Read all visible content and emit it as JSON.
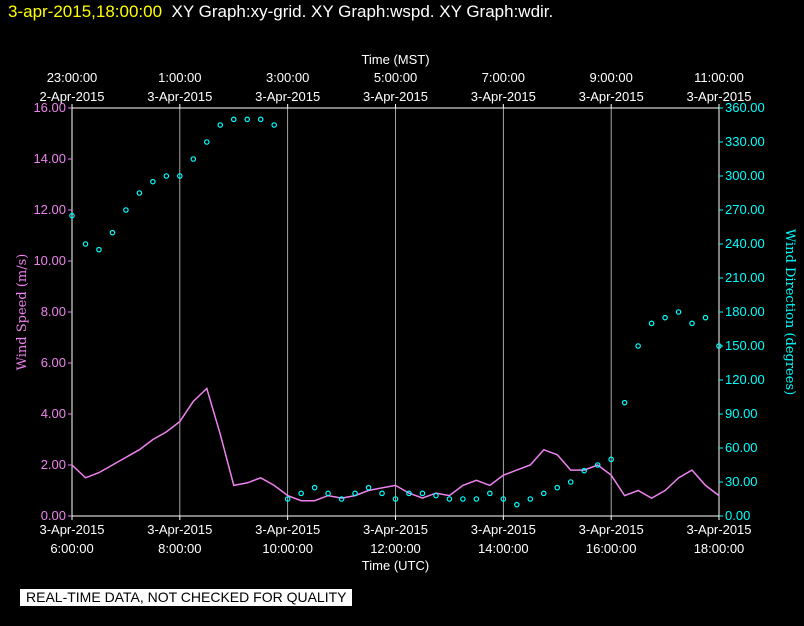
{
  "header": {
    "timestamp": "3-apr-2015,18:00:00",
    "graphs": "XY Graph:xy-grid.  XY Graph:wspd.  XY Graph:wdir."
  },
  "disclaimer": "REAL-TIME DATA, NOT CHECKED FOR QUALITY",
  "colors": {
    "background": "#000000",
    "wind_speed": "#ee82ee",
    "wind_direction": "#00ffff",
    "axis_text": "#ffffff",
    "timestamp": "#ffff00",
    "grid": "#ffffff"
  },
  "chart_data": {
    "type": "line",
    "xlabel_bottom": "Time (UTC)",
    "xlabel_top": "Time (MST)",
    "ylabel_left": "Wind Speed (m/s)",
    "ylabel_right": "Wind Direction (degrees)",
    "xlim_utc_hours": [
      6,
      18
    ],
    "ylim_left": [
      0,
      16
    ],
    "ylim_right": [
      0,
      360
    ],
    "x_ticks_bottom": [
      {
        "date": "3-Apr-2015",
        "time": "6:00:00"
      },
      {
        "date": "3-Apr-2015",
        "time": "8:00:00"
      },
      {
        "date": "3-Apr-2015",
        "time": "10:00:00"
      },
      {
        "date": "3-Apr-2015",
        "time": "12:00:00"
      },
      {
        "date": "3-Apr-2015",
        "time": "14:00:00"
      },
      {
        "date": "3-Apr-2015",
        "time": "16:00:00"
      },
      {
        "date": "3-Apr-2015",
        "time": "18:00:00"
      }
    ],
    "x_ticks_top": [
      {
        "time": "23:00:00",
        "date": "2-Apr-2015"
      },
      {
        "time": "1:00:00",
        "date": "3-Apr-2015"
      },
      {
        "time": "3:00:00",
        "date": "3-Apr-2015"
      },
      {
        "time": "5:00:00",
        "date": "3-Apr-2015"
      },
      {
        "time": "7:00:00",
        "date": "3-Apr-2015"
      },
      {
        "time": "9:00:00",
        "date": "3-Apr-2015"
      },
      {
        "time": "11:00:00",
        "date": "3-Apr-2015"
      }
    ],
    "y_ticks_left": [
      "0.00",
      "2.00",
      "4.00",
      "6.00",
      "8.00",
      "10.00",
      "12.00",
      "14.00",
      "16.00"
    ],
    "y_ticks_right": [
      "0.00",
      "30.00",
      "60.00",
      "90.00",
      "120.00",
      "150.00",
      "180.00",
      "210.00",
      "240.00",
      "270.00",
      "300.00",
      "330.00",
      "360.00"
    ],
    "grid": "vertical lines at each bottom time tick",
    "series": [
      {
        "name": "Wind Speed (m/s)",
        "style": "line",
        "x": [
          6.0,
          6.25,
          6.5,
          6.75,
          7.0,
          7.25,
          7.5,
          7.75,
          8.0,
          8.25,
          8.5,
          8.75,
          9.0,
          9.25,
          9.5,
          9.75,
          10.0,
          10.25,
          10.5,
          10.75,
          11.0,
          11.25,
          11.5,
          11.75,
          12.0,
          12.25,
          12.5,
          12.75,
          13.0,
          13.25,
          13.5,
          13.75,
          14.0,
          14.25,
          14.5,
          14.75,
          15.0,
          15.25,
          15.5,
          15.75,
          16.0,
          16.25,
          16.5,
          16.75,
          17.0,
          17.25,
          17.5,
          17.75,
          18.0
        ],
        "y": [
          2.0,
          1.5,
          1.7,
          2.0,
          2.3,
          2.6,
          3.0,
          3.3,
          3.7,
          4.5,
          5.0,
          3.2,
          1.2,
          1.3,
          1.5,
          1.2,
          0.8,
          0.6,
          0.6,
          0.8,
          0.7,
          0.8,
          1.0,
          1.1,
          1.2,
          0.9,
          0.7,
          0.9,
          0.8,
          1.2,
          1.4,
          1.2,
          1.6,
          1.8,
          2.0,
          2.6,
          2.4,
          1.8,
          1.8,
          2.0,
          1.6,
          0.8,
          1.0,
          0.7,
          1.0,
          1.5,
          1.8,
          1.2,
          0.8
        ]
      },
      {
        "name": "Wind Direction (degrees)",
        "style": "scatter",
        "x": [
          6.0,
          6.25,
          6.5,
          6.75,
          7.0,
          7.25,
          7.5,
          7.75,
          8.0,
          8.25,
          8.5,
          8.75,
          9.0,
          9.25,
          9.5,
          9.75,
          10.0,
          10.25,
          10.5,
          10.75,
          11.0,
          11.25,
          11.5,
          11.75,
          12.0,
          12.25,
          12.5,
          12.75,
          13.0,
          13.25,
          13.5,
          13.75,
          14.0,
          14.25,
          14.5,
          14.75,
          15.0,
          15.25,
          15.5,
          15.75,
          16.0,
          16.25,
          16.5,
          16.75,
          17.0,
          17.25,
          17.5,
          17.75,
          18.0
        ],
        "y": [
          265,
          240,
          235,
          250,
          270,
          285,
          295,
          300,
          300,
          315,
          330,
          345,
          350,
          350,
          350,
          345,
          15,
          20,
          25,
          20,
          15,
          20,
          25,
          20,
          15,
          20,
          20,
          18,
          15,
          15,
          15,
          20,
          15,
          10,
          15,
          20,
          25,
          30,
          40,
          45,
          50,
          100,
          150,
          170,
          175,
          180,
          170,
          175,
          150
        ]
      }
    ]
  }
}
